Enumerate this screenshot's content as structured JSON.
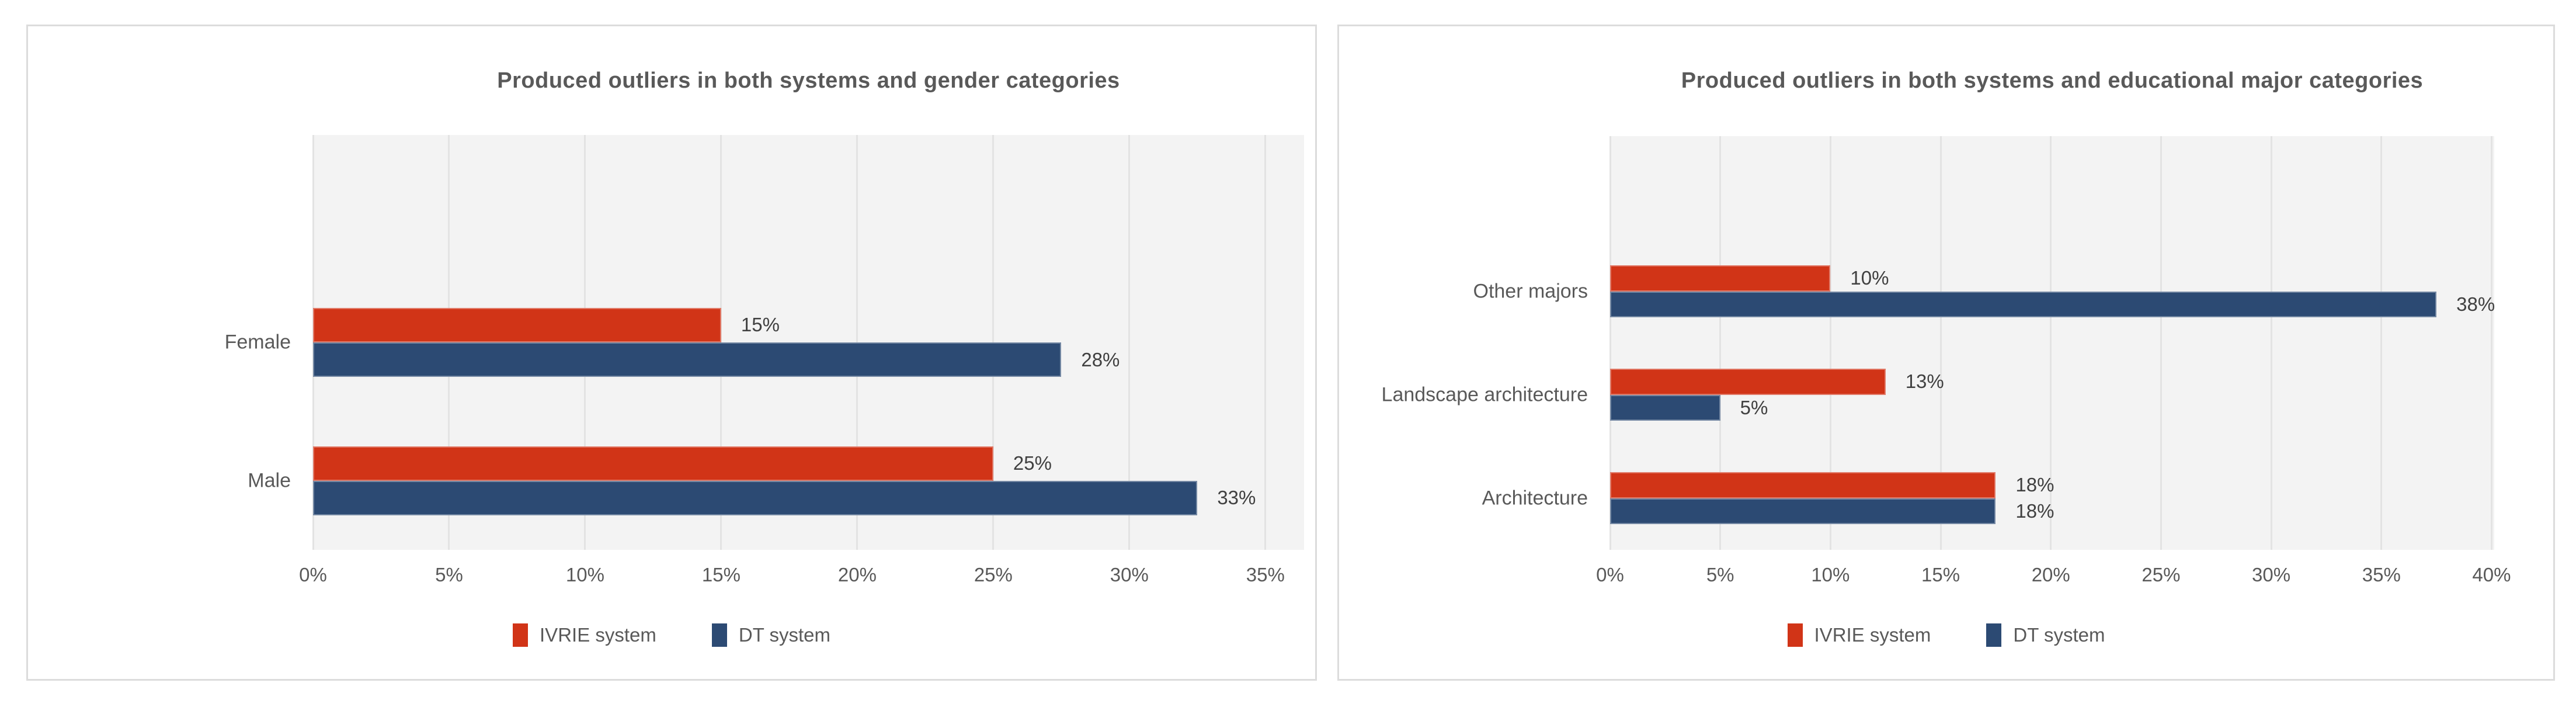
{
  "chart_data": [
    {
      "type": "bar",
      "orientation": "horizontal",
      "title": "Produced outliers in both systems and  gender categories",
      "xlabel": "",
      "ylabel": "",
      "xlim": [
        0,
        35
      ],
      "grid": true,
      "legend_position": "bottom",
      "x_ticks": [
        "0%",
        "5%",
        "10%",
        "15%",
        "20%",
        "25%",
        "30%",
        "35%"
      ],
      "x_tick_values": [
        0,
        5,
        10,
        15,
        20,
        25,
        30,
        35
      ],
      "series": [
        {
          "name": "IVRIE system",
          "color": "#d13417"
        },
        {
          "name": "DT system",
          "color": "#2c4a73"
        }
      ],
      "categories": [
        {
          "label": "Female",
          "bars": [
            {
              "series": "IVRIE system",
              "label": "15%",
              "value": 15
            },
            {
              "series": "DT system",
              "label": "28%",
              "value": 27.5
            }
          ]
        },
        {
          "label": "Male",
          "bars": [
            {
              "series": "IVRIE system",
              "label": "25%",
              "value": 25
            },
            {
              "series": "DT system",
              "label": "33%",
              "value": 32.5
            }
          ]
        }
      ]
    },
    {
      "type": "bar",
      "orientation": "horizontal",
      "title": "Produced outliers in both systems and educational major categories",
      "xlabel": "",
      "ylabel": "",
      "xlim": [
        0,
        40
      ],
      "grid": true,
      "legend_position": "bottom",
      "x_ticks": [
        "0%",
        "5%",
        "10%",
        "15%",
        "20%",
        "25%",
        "30%",
        "35%",
        "40%"
      ],
      "x_tick_values": [
        0,
        5,
        10,
        15,
        20,
        25,
        30,
        35,
        40
      ],
      "series": [
        {
          "name": "IVRIE system",
          "color": "#d13417"
        },
        {
          "name": "DT system",
          "color": "#2c4a73"
        }
      ],
      "categories": [
        {
          "label": "Other majors",
          "bars": [
            {
              "series": "IVRIE system",
              "label": "10%",
              "value": 10
            },
            {
              "series": "DT system",
              "label": "38%",
              "value": 37.5
            }
          ]
        },
        {
          "label": "Landscape architecture",
          "bars": [
            {
              "series": "IVRIE system",
              "label": "13%",
              "value": 12.5
            },
            {
              "series": "DT system",
              "label": "5%",
              "value": 5
            }
          ]
        },
        {
          "label": "Architecture",
          "bars": [
            {
              "series": "IVRIE system",
              "label": "18%",
              "value": 17.5
            },
            {
              "series": "DT system",
              "label": "18%",
              "value": 17.5
            }
          ]
        }
      ]
    }
  ],
  "colors": {
    "ivrie_red": "#d13417",
    "dt_navy": "#2c4a73",
    "plot_background": "#f3f3f3",
    "gridline": "#e3e3e3",
    "text_gray": "#595959",
    "data_label_gray": "#404040",
    "panel_border": "#dcdcdc"
  }
}
